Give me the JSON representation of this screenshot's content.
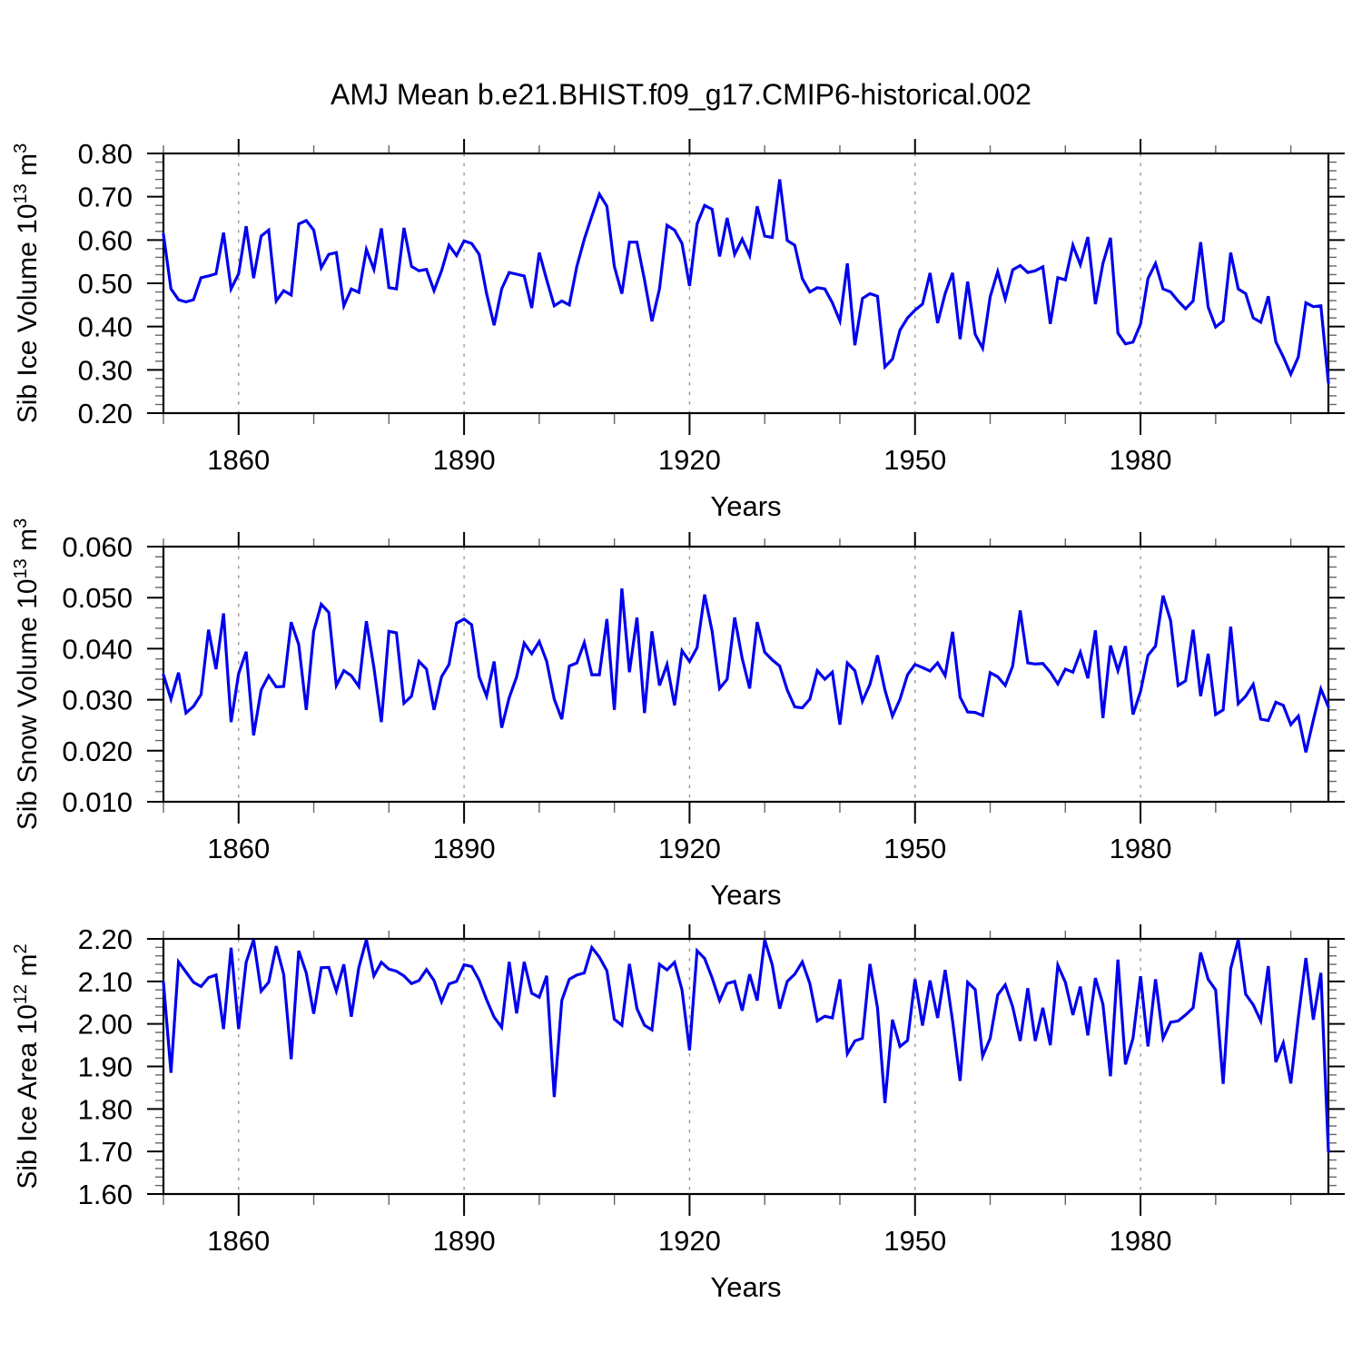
{
  "suptitle": "AMJ Mean b.e21.BHIST.f09_g17.CMIP6-historical.002",
  "chart_data": [
    {
      "type": "line",
      "panel": "sib-ice-volume",
      "ylabel_parts": [
        "Sib Ice Volume 10",
        "13",
        " m",
        "3"
      ],
      "xlabel": "Years",
      "ylim": [
        0.2,
        0.8
      ],
      "ytick_major": 0.1,
      "ytick_minor": 0.02,
      "ytick_labels": [
        "0.20",
        "0.30",
        "0.40",
        "0.50",
        "0.60",
        "0.70",
        "0.80"
      ],
      "x_start": 1850,
      "x_end": 2005,
      "xticks_major": [
        1860,
        1890,
        1920,
        1950,
        1980
      ],
      "xtick_labels": [
        "1860",
        "1890",
        "1920",
        "1950",
        "1980"
      ],
      "xtick_minor_step": 10,
      "grid": "vertical-dashed-at-major-xticks",
      "legend": "none",
      "line_color": "#0000ee",
      "series": [
        {
          "name": "Sib Ice Volume",
          "x0": 1850,
          "dx": 1,
          "values": [
            0.613,
            0.487,
            0.462,
            0.457,
            0.462,
            0.513,
            0.517,
            0.522,
            0.617,
            0.487,
            0.522,
            0.632,
            0.512,
            0.609,
            0.623,
            0.459,
            0.483,
            0.473,
            0.637,
            0.645,
            0.623,
            0.536,
            0.567,
            0.571,
            0.448,
            0.487,
            0.479,
            0.578,
            0.532,
            0.627,
            0.49,
            0.487,
            0.628,
            0.539,
            0.529,
            0.532,
            0.483,
            0.529,
            0.588,
            0.564,
            0.598,
            0.592,
            0.567,
            0.476,
            0.403,
            0.487,
            0.525,
            0.521,
            0.517,
            0.443,
            0.571,
            0.508,
            0.448,
            0.459,
            0.45,
            0.539,
            0.602,
            0.655,
            0.706,
            0.678,
            0.539,
            0.476,
            0.595,
            0.595,
            0.508,
            0.412,
            0.487,
            0.634,
            0.623,
            0.592,
            0.494,
            0.637,
            0.68,
            0.671,
            0.562,
            0.651,
            0.567,
            0.602,
            0.564,
            0.678,
            0.609,
            0.606,
            0.74,
            0.599,
            0.588,
            0.511,
            0.48,
            0.49,
            0.487,
            0.455,
            0.413,
            0.546,
            0.357,
            0.465,
            0.476,
            0.47,
            0.307,
            0.325,
            0.392,
            0.42,
            0.438,
            0.452,
            0.524,
            0.408,
            0.476,
            0.524,
            0.371,
            0.504,
            0.382,
            0.35,
            0.469,
            0.527,
            0.464,
            0.531,
            0.541,
            0.525,
            0.529,
            0.538,
            0.406,
            0.513,
            0.508,
            0.588,
            0.543,
            0.607,
            0.452,
            0.546,
            0.605,
            0.385,
            0.36,
            0.364,
            0.406,
            0.511,
            0.546,
            0.487,
            0.48,
            0.459,
            0.441,
            0.459,
            0.595,
            0.445,
            0.399,
            0.413,
            0.571,
            0.487,
            0.476,
            0.42,
            0.41,
            0.47,
            0.365,
            0.33,
            0.29,
            0.33,
            0.455,
            0.446,
            0.448,
            0.27
          ]
        }
      ]
    },
    {
      "type": "line",
      "panel": "sib-snow-volume",
      "ylabel_parts": [
        "Sib Snow Volume 10",
        "13",
        " m",
        "3"
      ],
      "xlabel": "Years",
      "ylim": [
        0.01,
        0.06
      ],
      "ytick_major": 0.01,
      "ytick_minor": 0.002,
      "ytick_labels": [
        "0.010",
        "0.020",
        "0.030",
        "0.040",
        "0.050",
        "0.060"
      ],
      "x_start": 1850,
      "x_end": 2005,
      "xticks_major": [
        1860,
        1890,
        1920,
        1950,
        1980
      ],
      "xtick_labels": [
        "1860",
        "1890",
        "1920",
        "1950",
        "1980"
      ],
      "xtick_minor_step": 10,
      "grid": "vertical-dashed-at-major-xticks",
      "legend": "none",
      "line_color": "#0000ee",
      "series": [
        {
          "name": "Sib Snow Volume",
          "x0": 1850,
          "dx": 1,
          "values": [
            0.0349,
            0.0301,
            0.0353,
            0.0274,
            0.0287,
            0.031,
            0.0437,
            0.036,
            0.0469,
            0.0256,
            0.0351,
            0.0394,
            0.023,
            0.0319,
            0.0347,
            0.0325,
            0.0326,
            0.0452,
            0.0408,
            0.028,
            0.0434,
            0.0487,
            0.0471,
            0.0328,
            0.0357,
            0.0347,
            0.0326,
            0.0454,
            0.0363,
            0.0256,
            0.0434,
            0.0431,
            0.0293,
            0.0307,
            0.0375,
            0.036,
            0.028,
            0.0345,
            0.0369,
            0.045,
            0.0458,
            0.0447,
            0.0345,
            0.0307,
            0.0375,
            0.0245,
            0.0304,
            0.0345,
            0.0411,
            0.039,
            0.0414,
            0.0375,
            0.0301,
            0.0262,
            0.0366,
            0.0372,
            0.0412,
            0.0349,
            0.0349,
            0.0458,
            0.028,
            0.0518,
            0.0354,
            0.0461,
            0.0274,
            0.0434,
            0.0328,
            0.0369,
            0.0289,
            0.0396,
            0.0375,
            0.0402,
            0.0506,
            0.0434,
            0.0322,
            0.034,
            0.0461,
            0.0381,
            0.0322,
            0.0452,
            0.0393,
            0.0378,
            0.0366,
            0.0319,
            0.0286,
            0.0284,
            0.0301,
            0.0357,
            0.034,
            0.0354,
            0.0251,
            0.0372,
            0.0357,
            0.0297,
            0.033,
            0.0387,
            0.0319,
            0.0268,
            0.0301,
            0.0349,
            0.0369,
            0.0363,
            0.0356,
            0.0372,
            0.0347,
            0.0433,
            0.0305,
            0.0276,
            0.0275,
            0.0269,
            0.0353,
            0.0345,
            0.0328,
            0.0366,
            0.0475,
            0.0372,
            0.037,
            0.0371,
            0.0354,
            0.0331,
            0.036,
            0.0354,
            0.0393,
            0.0342,
            0.0436,
            0.0264,
            0.0406,
            0.0357,
            0.0405,
            0.0271,
            0.0316,
            0.0387,
            0.0405,
            0.0504,
            0.0455,
            0.0328,
            0.0337,
            0.0437,
            0.0307,
            0.039,
            0.0271,
            0.028,
            0.0443,
            0.0292,
            0.0307,
            0.033,
            0.0262,
            0.0259,
            0.0295,
            0.0289,
            0.0251,
            0.0268,
            0.0197,
            0.026,
            0.0321,
            0.0286
          ]
        }
      ]
    },
    {
      "type": "line",
      "panel": "sib-ice-area",
      "ylabel_parts": [
        "Sib Ice Area 10",
        "12",
        " m",
        "2"
      ],
      "xlabel": "Years",
      "ylim": [
        1.6,
        2.2
      ],
      "ytick_major": 0.1,
      "ytick_minor": 0.02,
      "ytick_labels": [
        "1.60",
        "1.70",
        "1.80",
        "1.90",
        "2.00",
        "2.10",
        "2.20"
      ],
      "x_start": 1850,
      "x_end": 2005,
      "xticks_major": [
        1860,
        1890,
        1920,
        1950,
        1980
      ],
      "xtick_labels": [
        "1860",
        "1890",
        "1920",
        "1950",
        "1980"
      ],
      "xtick_minor_step": 10,
      "grid": "vertical-dashed-at-major-xticks",
      "legend": "none",
      "line_color": "#0000ee",
      "series": [
        {
          "name": "Sib Ice Area",
          "x0": 1850,
          "dx": 1,
          "values": [
            2.098,
            1.885,
            2.146,
            2.122,
            2.098,
            2.088,
            2.109,
            2.115,
            1.988,
            2.179,
            1.988,
            2.145,
            2.198,
            2.077,
            2.098,
            2.183,
            2.117,
            1.917,
            2.172,
            2.12,
            2.024,
            2.132,
            2.133,
            2.077,
            2.14,
            2.017,
            2.133,
            2.198,
            2.113,
            2.145,
            2.129,
            2.124,
            2.113,
            2.095,
            2.102,
            2.128,
            2.102,
            2.052,
            2.094,
            2.1,
            2.139,
            2.135,
            2.103,
            2.057,
            2.016,
            1.992,
            2.146,
            2.025,
            2.146,
            2.072,
            2.063,
            2.113,
            1.828,
            2.055,
            2.105,
            2.115,
            2.12,
            2.18,
            2.157,
            2.125,
            2.011,
            1.997,
            2.141,
            2.036,
            1.997,
            1.986,
            2.14,
            2.127,
            2.145,
            2.08,
            1.938,
            2.172,
            2.154,
            2.108,
            2.055,
            2.095,
            2.1,
            2.031,
            2.117,
            2.055,
            2.198,
            2.139,
            2.036,
            2.1,
            2.117,
            2.146,
            2.095,
            2.007,
            2.018,
            2.014,
            2.105,
            1.93,
            1.96,
            1.966,
            2.141,
            2.038,
            1.814,
            2.01,
            1.947,
            1.961,
            2.105,
            1.996,
            2.102,
            2.014,
            2.127,
            2.007,
            1.866,
            2.098,
            2.081,
            1.924,
            1.966,
            2.068,
            2.092,
            2.04,
            1.96,
            2.084,
            1.96,
            2.038,
            1.95,
            2.138,
            2.098,
            2.021,
            2.088,
            1.973,
            2.108,
            2.046,
            1.877,
            2.151,
            1.905,
            1.966,
            2.112,
            1.947,
            2.105,
            1.966,
            2.004,
            2.007,
            2.021,
            2.038,
            2.168,
            2.105,
            2.08,
            1.859,
            2.13,
            2.198,
            2.07,
            2.045,
            2.007,
            2.136,
            1.91,
            1.955,
            1.86,
            2.015,
            2.155,
            2.01,
            2.12,
            1.7
          ]
        }
      ]
    }
  ]
}
